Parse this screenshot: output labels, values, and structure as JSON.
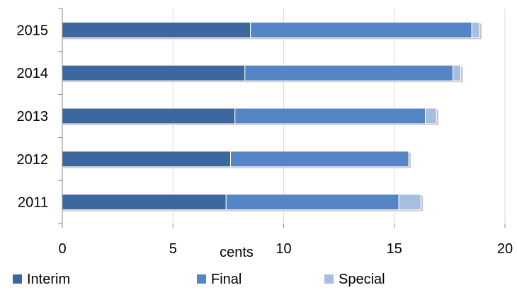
{
  "chart_data": {
    "type": "bar",
    "orientation": "horizontal",
    "stacked": true,
    "categories": [
      "2015",
      "2014",
      "2013",
      "2012",
      "2011"
    ],
    "series": [
      {
        "name": "Interim",
        "color": "#3d679f",
        "values": [
          8.5,
          8.25,
          7.8,
          7.6,
          7.4
        ]
      },
      {
        "name": "Final",
        "color": "#5585c5",
        "values": [
          10.0,
          9.4,
          8.6,
          8.05,
          7.8
        ]
      },
      {
        "name": "Special",
        "color": "#a8bedf",
        "values": [
          0.35,
          0.35,
          0.5,
          0,
          1.0
        ]
      }
    ],
    "xlabel": "cents",
    "xlim": [
      0,
      20
    ],
    "xticks": [
      "0",
      "5",
      "10",
      "15",
      "20"
    ],
    "grid": "vertical",
    "legend": "bottom"
  }
}
